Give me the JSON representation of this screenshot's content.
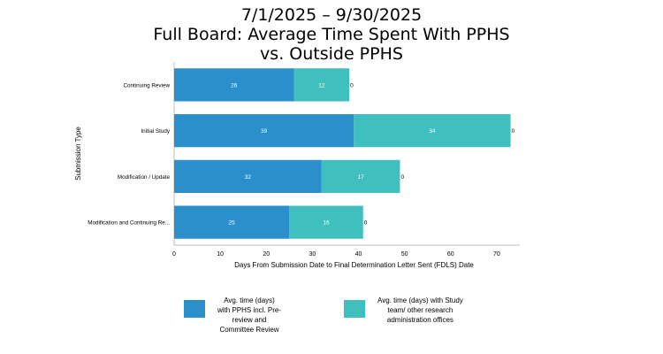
{
  "title_lines": [
    "7/1/2025 – 9/30/2025",
    "Full Board: Average Time Spent With PPHS",
    "vs. Outside PPHS"
  ],
  "colors": {
    "series1": "#2b8fcb",
    "series2": "#3fbfbd",
    "axis": "#bfbfbf",
    "text": "#000000",
    "bar_label": "#ffffff"
  },
  "legend": {
    "series1_lines": [
      "Avg. time (days)",
      "with PPHS incl. Pre-",
      "review and",
      "Committee Review"
    ],
    "series2_lines": [
      "Avg. time (days) with Study",
      "team/ other research",
      "administration offices"
    ]
  },
  "chart_data": {
    "type": "bar",
    "orientation": "horizontal",
    "stacked": true,
    "categories": [
      "Continuing Review",
      "Initial Study",
      "Modification / Update",
      "Modification and Continuing Re..."
    ],
    "series": [
      {
        "name": "Avg. time (days) with PPHS incl. Pre-review and Committee Review",
        "values": [
          26,
          39,
          32,
          25
        ]
      },
      {
        "name": "Avg. time (days) with Study team/ other research administration offices",
        "values": [
          12,
          34,
          17,
          16
        ]
      }
    ],
    "end_labels": [
      "0",
      "0",
      "0",
      "0"
    ],
    "xlabel": "Days From Submission Date to Final Determination Letter Sent (FDLS) Date",
    "ylabel": "Submission Type",
    "xlim": [
      0,
      75
    ],
    "xticks": [
      0,
      10,
      20,
      30,
      40,
      50,
      60,
      70
    ],
    "grid": false,
    "legend_position": "bottom"
  }
}
